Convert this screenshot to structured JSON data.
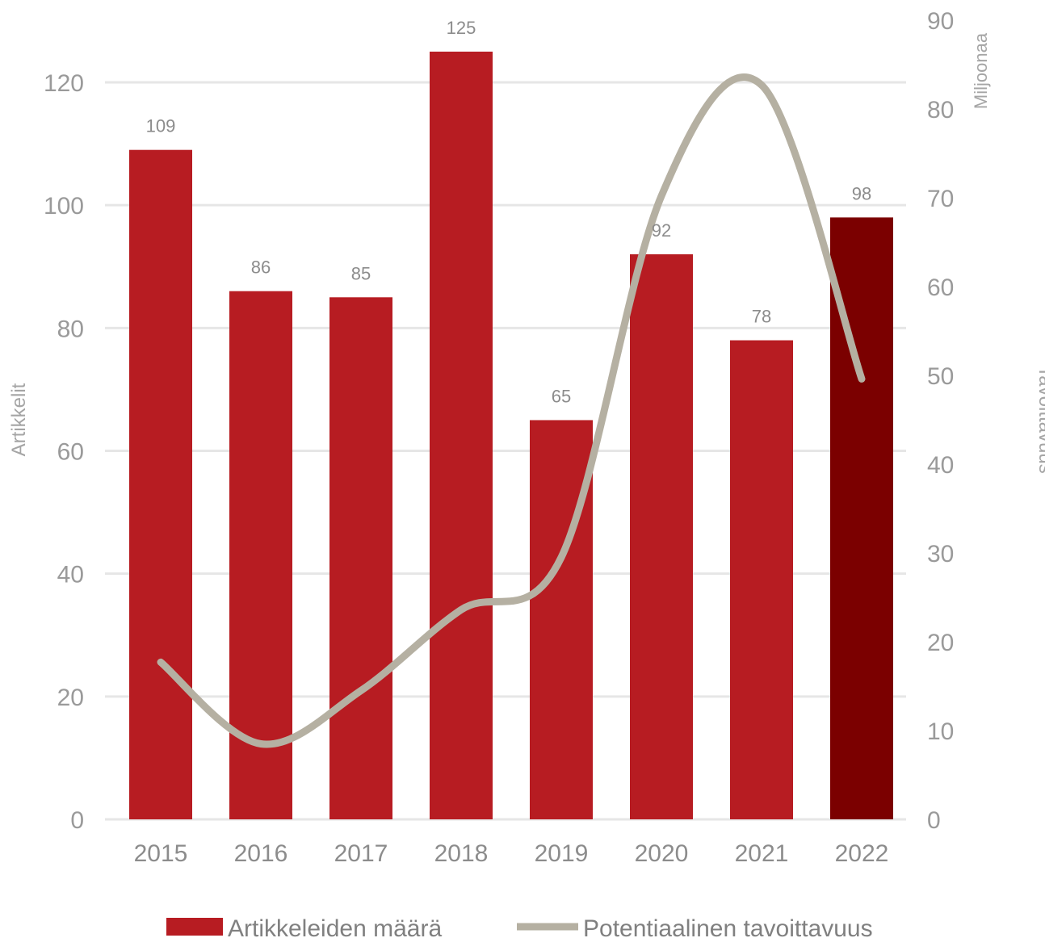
{
  "chart_data": {
    "type": "bar",
    "categories": [
      "2015",
      "2016",
      "2017",
      "2018",
      "2019",
      "2020",
      "2021",
      "2022"
    ],
    "series": [
      {
        "name": "Artikkeleiden määrä",
        "type": "bar",
        "axis": "left",
        "values": [
          109,
          86,
          85,
          125,
          65,
          92,
          78,
          98
        ],
        "data_labels": [
          "109",
          "86",
          "85",
          "125",
          "65",
          "92",
          "78",
          "98"
        ],
        "color": "#b71c22",
        "highlight_color": "#7b0000",
        "highlight_index": 7
      },
      {
        "name": "Potentiaalinen tavoittavuus",
        "type": "line",
        "smooth": true,
        "axis": "right",
        "values": [
          17.7,
          8.5,
          14.5,
          23.6,
          29.5,
          70.2,
          82.7,
          49.6
        ],
        "color": "#b5b0a2"
      }
    ],
    "ylabel": "Artikkelit",
    "y2label": "Tavoittavuus",
    "y2unit": "Miljoonaa",
    "ylim": [
      0,
      130
    ],
    "y2lim": [
      0,
      90
    ],
    "yticks": [
      0,
      20,
      40,
      60,
      80,
      100,
      120
    ],
    "y2ticks": [
      0,
      10,
      20,
      30,
      40,
      50,
      60,
      70,
      80,
      90
    ],
    "grid": true,
    "legend": "bottom"
  }
}
